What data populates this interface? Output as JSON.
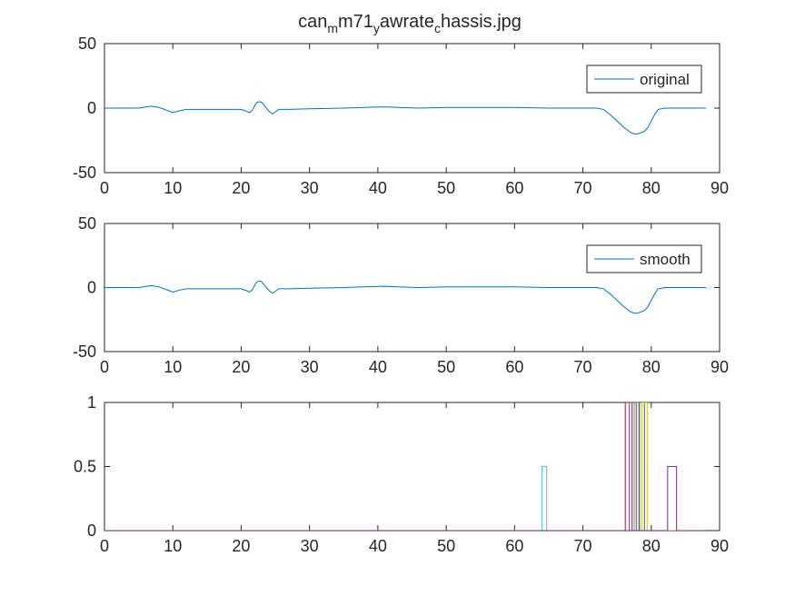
{
  "figure": {
    "title_parts": [
      {
        "text": "can",
        "sub": false
      },
      {
        "text": "m",
        "sub": true
      },
      {
        "text": "m71",
        "sub": false
      },
      {
        "text": "y",
        "sub": true
      },
      {
        "text": "awrate",
        "sub": false
      },
      {
        "text": "c",
        "sub": true
      },
      {
        "text": "hassis.jpg",
        "sub": false
      }
    ]
  },
  "colors": {
    "axis": "#262626",
    "background": "#ffffff",
    "line1": "#0072BD",
    "step_colors": [
      "#4DBEEE",
      "#A2142F",
      "#7E2F8E",
      "#77AC30",
      "#0072BD",
      "#EDB120",
      "#7E2F8E"
    ]
  },
  "chart_data": [
    {
      "type": "line",
      "xlim": [
        0,
        90
      ],
      "ylim": [
        -50,
        50
      ],
      "xticks": [
        "0",
        "10",
        "20",
        "30",
        "40",
        "50",
        "60",
        "70",
        "80",
        "90"
      ],
      "yticks": [
        "-50",
        "0",
        "50"
      ],
      "legend": {
        "placement": "top-right",
        "entries": [
          "original"
        ]
      },
      "grid": false,
      "series": [
        {
          "name": "original",
          "x": [
            0,
            5,
            6.8,
            8,
            9.5,
            10,
            11,
            12,
            15,
            18,
            20,
            20.8,
            21.2,
            21.6,
            22,
            22.3,
            22.7,
            23,
            23.4,
            24,
            24.6,
            25,
            25.5,
            26,
            27,
            30,
            35,
            38,
            41,
            43,
            46,
            50,
            55,
            60,
            65,
            70,
            72,
            73,
            74,
            75,
            76,
            77,
            77.5,
            78,
            79,
            79.5,
            80,
            80.5,
            81,
            82,
            84,
            86,
            88
          ],
          "y": [
            0,
            0,
            1.5,
            0.5,
            -2.5,
            -3.5,
            -2,
            -1,
            -1,
            -1,
            -1,
            -2.5,
            -3.5,
            -2,
            2,
            4.5,
            5,
            4.5,
            2,
            -2,
            -4.5,
            -3,
            -1,
            -1,
            -1,
            -0.5,
            0,
            0.5,
            1,
            0.5,
            0,
            0.5,
            0.5,
            0.5,
            0,
            0,
            0,
            -1,
            -5,
            -10,
            -15,
            -19,
            -20,
            -20,
            -18,
            -15,
            -10,
            -5,
            -1,
            0,
            0,
            0,
            0
          ]
        }
      ]
    },
    {
      "type": "line",
      "xlim": [
        0,
        90
      ],
      "ylim": [
        -50,
        50
      ],
      "xticks": [
        "0",
        "10",
        "20",
        "30",
        "40",
        "50",
        "60",
        "70",
        "80",
        "90"
      ],
      "yticks": [
        "-50",
        "0",
        "50"
      ],
      "legend": {
        "placement": "top-right",
        "entries": [
          "smooth"
        ]
      },
      "grid": false,
      "series": [
        {
          "name": "smooth",
          "x": [
            0,
            5,
            6.8,
            8,
            9.5,
            10,
            11,
            12,
            15,
            18,
            20,
            20.8,
            21.2,
            21.6,
            22,
            22.3,
            22.7,
            23,
            23.4,
            24,
            24.6,
            25,
            25.5,
            26,
            27,
            30,
            35,
            38,
            41,
            43,
            46,
            50,
            55,
            60,
            65,
            70,
            72,
            73,
            74,
            75,
            76,
            77,
            77.5,
            78,
            79,
            79.5,
            80,
            80.5,
            81,
            82,
            84,
            86,
            88
          ],
          "y": [
            0,
            0,
            1.5,
            0.5,
            -2.5,
            -3.5,
            -2,
            -1,
            -1,
            -1,
            -1,
            -2.5,
            -3.5,
            -2,
            2,
            4.5,
            5,
            4.5,
            2,
            -2,
            -4.5,
            -3,
            -1,
            -1,
            -1,
            -0.5,
            0,
            0.5,
            1,
            0.5,
            0,
            0.5,
            0.5,
            0.5,
            0,
            0,
            0,
            -1,
            -5,
            -10,
            -15,
            -19,
            -20,
            -20,
            -18,
            -15,
            -10,
            -5,
            -1,
            0,
            0,
            0,
            0
          ]
        }
      ]
    },
    {
      "type": "line",
      "xlim": [
        0,
        90
      ],
      "ylim": [
        0,
        1
      ],
      "xticks": [
        "0",
        "10",
        "20",
        "30",
        "40",
        "50",
        "60",
        "70",
        "80",
        "90"
      ],
      "yticks": [
        "0",
        "0.5",
        "1"
      ],
      "grid": false,
      "series": [
        {
          "x": [
            0,
            64,
            64,
            64.7,
            64.7,
            88
          ],
          "y": [
            0,
            0,
            0.5,
            0.5,
            0,
            0
          ]
        },
        {
          "x": [
            0,
            76.2,
            76.2,
            77.2,
            77.2,
            88
          ],
          "y": [
            0,
            0,
            1,
            1,
            0,
            0
          ]
        },
        {
          "x": [
            0,
            76.8,
            76.8,
            77.8,
            77.8,
            88
          ],
          "y": [
            0,
            0,
            1,
            1,
            0,
            0
          ]
        },
        {
          "x": [
            0,
            77.5,
            77.5,
            78.3,
            78.3,
            88
          ],
          "y": [
            0,
            0,
            1,
            1,
            0,
            0
          ]
        },
        {
          "x": [
            0,
            78.2,
            78.2,
            79.0,
            79.0,
            88
          ],
          "y": [
            0,
            0,
            1,
            1,
            0,
            0
          ]
        },
        {
          "x": [
            0,
            78.6,
            78.6,
            79.4,
            79.4,
            88
          ],
          "y": [
            0,
            0,
            1,
            1,
            0,
            0
          ]
        },
        {
          "x": [
            0,
            82.4,
            82.4,
            83.7,
            83.7,
            88
          ],
          "y": [
            0,
            0,
            0.5,
            0.5,
            0,
            0
          ]
        }
      ]
    }
  ]
}
